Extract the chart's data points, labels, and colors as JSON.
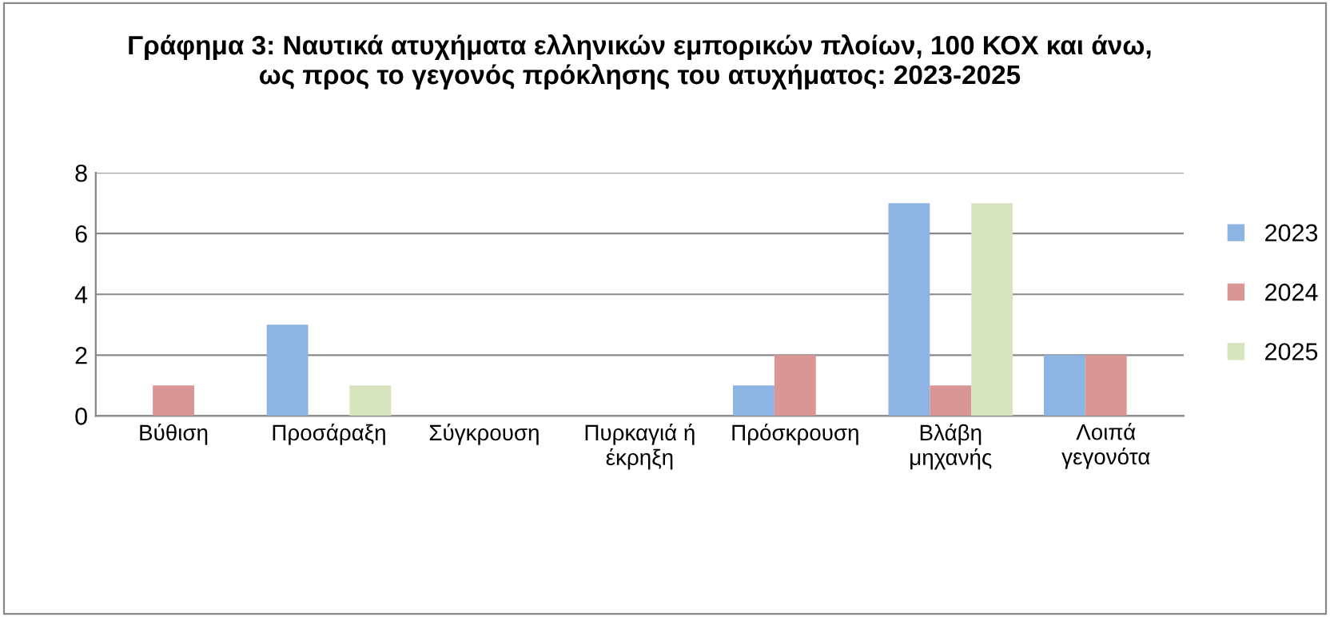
{
  "chart_data": {
    "type": "bar",
    "title": "Γράφημα 3: Ναυτικά ατυχήματα ελληνικών εμπορικών πλοίων, 100 ΚΟΧ και άνω,\nως προς το γεγονός πρόκλησης του ατυχήματος: 2023-2025",
    "categories": [
      "Βύθιση",
      "Προσάραξη",
      "Σύγκρουση",
      "Πυρκαγιά ή\nέκρηξη",
      "Πρόσκρουση",
      "Βλάβη\nμηχανής",
      "Λοιπά\nγεγονότα"
    ],
    "series": [
      {
        "name": "2023",
        "color": "#8eb4e3",
        "values": [
          0,
          3,
          0,
          0,
          1,
          7,
          2
        ]
      },
      {
        "name": "2024",
        "color": "#d99694",
        "values": [
          1,
          0,
          0,
          0,
          2,
          1,
          2
        ]
      },
      {
        "name": "2025",
        "color": "#d7e4bd",
        "values": [
          0,
          1,
          0,
          0,
          0,
          7,
          0
        ]
      }
    ],
    "ylim": [
      0,
      8
    ],
    "yticks": [
      0,
      2,
      4,
      6,
      8
    ],
    "grid": "y",
    "legend": "right"
  }
}
